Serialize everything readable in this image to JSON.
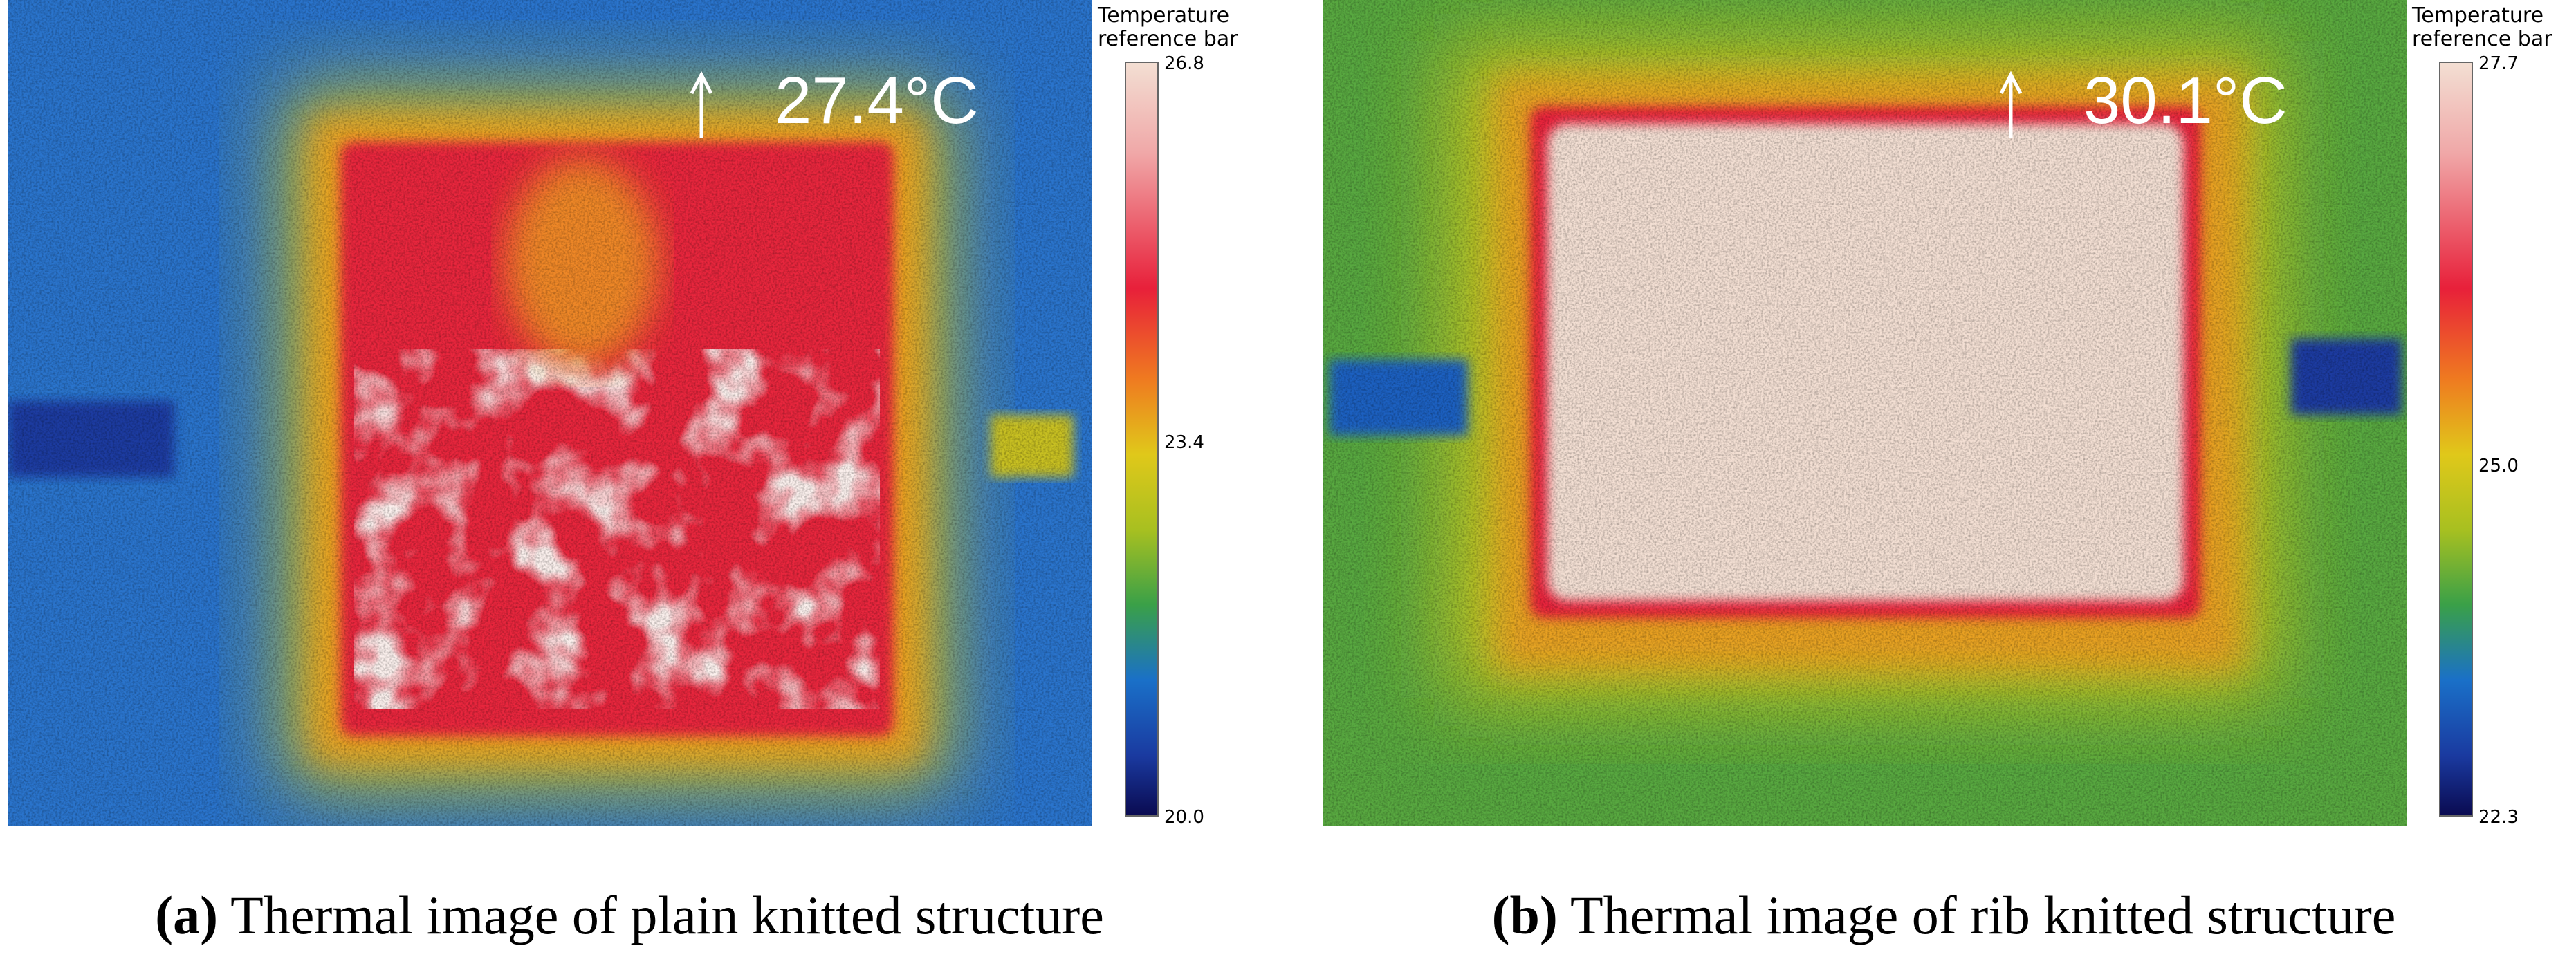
{
  "panels": [
    {
      "label": "(a)",
      "caption": "Thermal image of plain knitted structure",
      "max_temp": "27.4°C",
      "colorbar": {
        "title_lines": [
          "Temperature",
          "reference bar"
        ],
        "ticks": [
          "26.8",
          "23.4",
          "20.0"
        ]
      }
    },
    {
      "label": "(b)",
      "caption": "Thermal image of rib knitted structure",
      "max_temp": "30.1°C",
      "colorbar": {
        "title_lines": [
          "Temperature",
          "reference bar"
        ],
        "ticks": [
          "27.7",
          "25.0",
          "22.3"
        ]
      }
    }
  ]
}
